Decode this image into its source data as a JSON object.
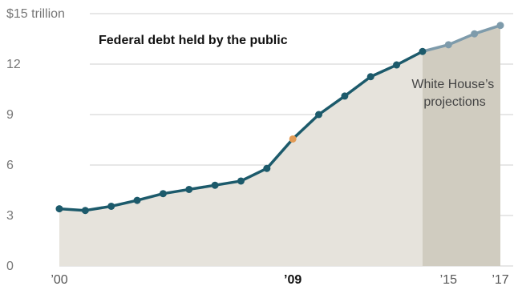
{
  "chart_data": {
    "type": "line",
    "title": "Federal debt held by the public",
    "x": [
      2000,
      2001,
      2002,
      2003,
      2004,
      2005,
      2006,
      2007,
      2008,
      2009,
      2010,
      2011,
      2012,
      2013,
      2014,
      2015,
      2016,
      2017
    ],
    "values": [
      3.4,
      3.3,
      3.55,
      3.9,
      4.3,
      4.55,
      4.8,
      5.05,
      5.8,
      7.55,
      9.0,
      10.1,
      11.25,
      11.95,
      12.75,
      13.15,
      13.8,
      14.3
    ],
    "projection_start_x": 2014,
    "highlight_x": 2009,
    "annotation": "White House's projections",
    "annotation_lines": [
      "White House’s",
      "projections"
    ],
    "ylim": [
      0,
      15
    ],
    "yticks": [
      0,
      3,
      6,
      9,
      12,
      15
    ],
    "ytick_labels": [
      "0",
      "3",
      "6",
      "9",
      "12",
      "$15 trillion"
    ],
    "xticks": [
      {
        "x": 2000,
        "label": "’00",
        "bold": false
      },
      {
        "x": 2009,
        "label": "’09",
        "bold": true
      },
      {
        "x": 2015,
        "label": "’15",
        "bold": false
      },
      {
        "x": 2017,
        "label": "’17",
        "bold": false
      }
    ],
    "grid": true,
    "colors": {
      "line": "#1c5a6b",
      "projection_line": "#7e9bab",
      "highlight_point": "#e39b55",
      "area": "#e6e3dc",
      "projection_area": "#d0ccc0",
      "grid": "#cfcfcf"
    }
  }
}
